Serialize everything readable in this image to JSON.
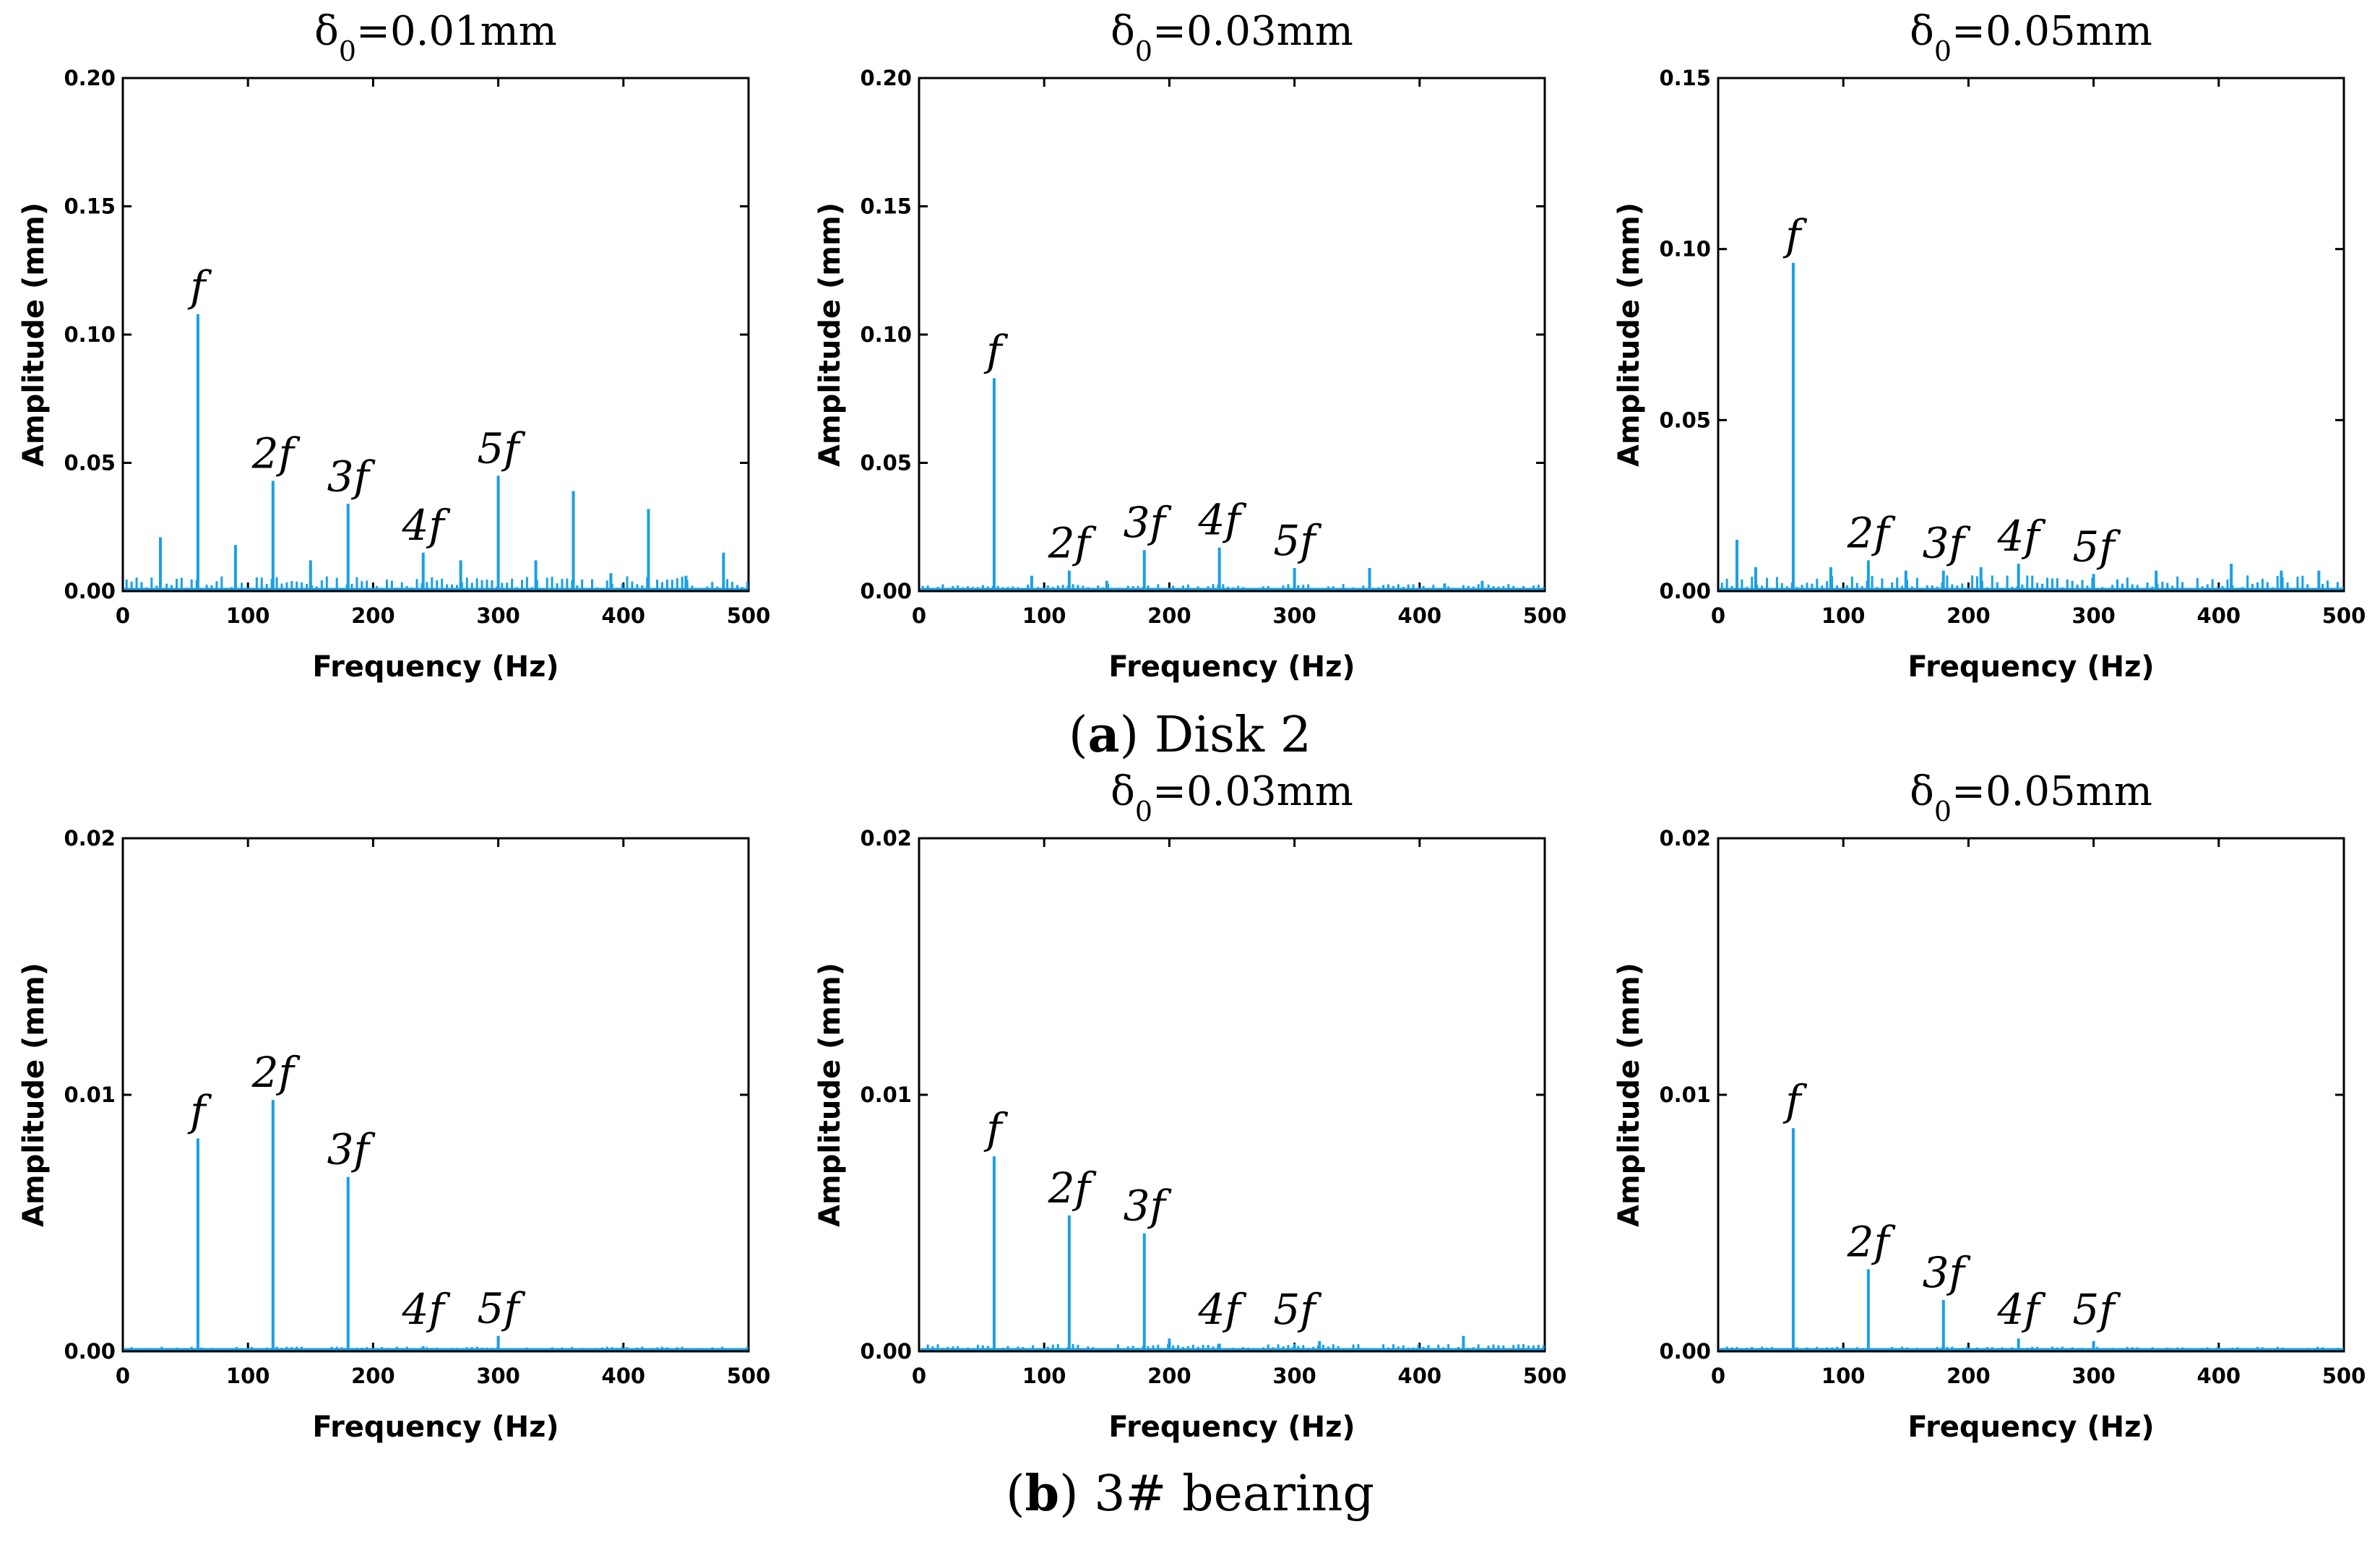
{
  "figure": {
    "captions": [
      {
        "letter": "a",
        "text": "Disk 2"
      },
      {
        "letter": "b",
        "text": "3# bearing"
      }
    ]
  },
  "chart_data": [
    {
      "type": "line",
      "row": 0,
      "col": 0,
      "title": "δ0=0.01mm",
      "title_base": "δ",
      "title_sub": "0",
      "title_rest": "=0.01mm",
      "xlabel": "Frequency (Hz)",
      "ylabel": "Amplitude (mm)",
      "xlim": [
        0,
        500
      ],
      "ylim": [
        0,
        0.2
      ],
      "xticks": [
        0,
        100,
        200,
        300,
        400,
        500
      ],
      "yticks": [
        0,
        0.05,
        0.1,
        0.15,
        0.2
      ],
      "ytick_labels": [
        "0.00",
        "0.05",
        "0.10",
        "0.15",
        "0.20"
      ],
      "series_color": "#1a9fe8",
      "peaks": [
        {
          "x": 60,
          "y": 0.108,
          "label": "f"
        },
        {
          "x": 120,
          "y": 0.043,
          "label": "2f"
        },
        {
          "x": 180,
          "y": 0.034,
          "label": "3f"
        },
        {
          "x": 240,
          "y": 0.015,
          "label": "4f"
        },
        {
          "x": 300,
          "y": 0.045,
          "label": "5f"
        }
      ],
      "minor_peaks": [
        {
          "x": 30,
          "y": 0.021
        },
        {
          "x": 90,
          "y": 0.018
        },
        {
          "x": 150,
          "y": 0.012
        },
        {
          "x": 270,
          "y": 0.012
        },
        {
          "x": 330,
          "y": 0.012
        },
        {
          "x": 360,
          "y": 0.039
        },
        {
          "x": 390,
          "y": 0.007
        },
        {
          "x": 420,
          "y": 0.032
        },
        {
          "x": 450,
          "y": 0.006
        },
        {
          "x": 480,
          "y": 0.015
        }
      ],
      "noise_level": 0.005
    },
    {
      "type": "line",
      "row": 0,
      "col": 1,
      "title": "δ0=0.03mm",
      "title_base": "δ",
      "title_sub": "0",
      "title_rest": "=0.03mm",
      "xlabel": "Frequency (Hz)",
      "ylabel": "Amplitude (mm)",
      "xlim": [
        0,
        500
      ],
      "ylim": [
        0,
        0.2
      ],
      "xticks": [
        0,
        100,
        200,
        300,
        400,
        500
      ],
      "yticks": [
        0,
        0.05,
        0.1,
        0.15,
        0.2
      ],
      "ytick_labels": [
        "0.00",
        "0.05",
        "0.10",
        "0.15",
        "0.20"
      ],
      "series_color": "#1a9fe8",
      "peaks": [
        {
          "x": 60,
          "y": 0.083,
          "label": "f"
        },
        {
          "x": 120,
          "y": 0.008,
          "label": "2f"
        },
        {
          "x": 180,
          "y": 0.016,
          "label": "3f"
        },
        {
          "x": 240,
          "y": 0.017,
          "label": "4f"
        },
        {
          "x": 300,
          "y": 0.009,
          "label": "5f"
        }
      ],
      "minor_peaks": [
        {
          "x": 90,
          "y": 0.006
        },
        {
          "x": 150,
          "y": 0.004
        },
        {
          "x": 360,
          "y": 0.009
        },
        {
          "x": 420,
          "y": 0.003
        },
        {
          "x": 450,
          "y": 0.004
        }
      ],
      "noise_level": 0.002
    },
    {
      "type": "line",
      "row": 0,
      "col": 2,
      "title": "δ0=0.05mm",
      "title_base": "δ",
      "title_sub": "0",
      "title_rest": "=0.05mm",
      "xlabel": "Frequency (Hz)",
      "ylabel": "Amplitude (mm)",
      "xlim": [
        0,
        500
      ],
      "ylim": [
        0,
        0.15
      ],
      "xticks": [
        0,
        100,
        200,
        300,
        400,
        500
      ],
      "yticks": [
        0,
        0.05,
        0.1,
        0.15
      ],
      "ytick_labels": [
        "0.00",
        "0.05",
        "0.10",
        "0.15"
      ],
      "series_color": "#1a9fe8",
      "peaks": [
        {
          "x": 60,
          "y": 0.096,
          "label": "f"
        },
        {
          "x": 120,
          "y": 0.009,
          "label": "2f"
        },
        {
          "x": 180,
          "y": 0.006,
          "label": "3f"
        },
        {
          "x": 240,
          "y": 0.008,
          "label": "4f"
        },
        {
          "x": 300,
          "y": 0.005,
          "label": "5f"
        }
      ],
      "minor_peaks": [
        {
          "x": 15,
          "y": 0.015
        },
        {
          "x": 30,
          "y": 0.007
        },
        {
          "x": 90,
          "y": 0.007
        },
        {
          "x": 150,
          "y": 0.006
        },
        {
          "x": 210,
          "y": 0.007
        },
        {
          "x": 350,
          "y": 0.006
        },
        {
          "x": 410,
          "y": 0.008
        },
        {
          "x": 450,
          "y": 0.006
        },
        {
          "x": 480,
          "y": 0.006
        }
      ],
      "noise_level": 0.004
    },
    {
      "type": "line",
      "row": 1,
      "col": 0,
      "title": "",
      "xlabel": "Frequency (Hz)",
      "ylabel": "Amplitude (mm)",
      "xlim": [
        0,
        500
      ],
      "ylim": [
        0,
        0.02
      ],
      "xticks": [
        0,
        100,
        200,
        300,
        400,
        500
      ],
      "yticks": [
        0,
        0.01,
        0.02
      ],
      "ytick_labels": [
        "0.00",
        "0.01",
        "0.02"
      ],
      "series_color": "#1a9fe8",
      "peaks": [
        {
          "x": 60,
          "y": 0.0083,
          "label": "f"
        },
        {
          "x": 120,
          "y": 0.0098,
          "label": "2f"
        },
        {
          "x": 180,
          "y": 0.0068,
          "label": "3f"
        },
        {
          "x": 240,
          "y": 0.0002,
          "label": "4f"
        },
        {
          "x": 300,
          "y": 0.0006,
          "label": "5f"
        }
      ],
      "minor_peaks": [],
      "noise_level": 0.0001
    },
    {
      "type": "line",
      "row": 1,
      "col": 1,
      "title": "δ0=0.03mm",
      "title_base": "δ",
      "title_sub": "0",
      "title_rest": "=0.03mm",
      "xlabel": "Frequency (Hz)",
      "ylabel": "Amplitude (mm)",
      "xlim": [
        0,
        500
      ],
      "ylim": [
        0,
        0.02
      ],
      "xticks": [
        0,
        100,
        200,
        300,
        400,
        500
      ],
      "yticks": [
        0,
        0.01,
        0.02
      ],
      "ytick_labels": [
        "0.00",
        "0.01",
        "0.02"
      ],
      "series_color": "#1a9fe8",
      "peaks": [
        {
          "x": 60,
          "y": 0.0076,
          "label": "f"
        },
        {
          "x": 120,
          "y": 0.0053,
          "label": "2f"
        },
        {
          "x": 180,
          "y": 0.0046,
          "label": "3f"
        },
        {
          "x": 240,
          "y": 0.0003,
          "label": "4f"
        },
        {
          "x": 300,
          "y": 0.0003,
          "label": "5f"
        }
      ],
      "minor_peaks": [
        {
          "x": 200,
          "y": 0.0005
        },
        {
          "x": 320,
          "y": 0.0004
        },
        {
          "x": 435,
          "y": 0.0006
        }
      ],
      "noise_level": 0.0002
    },
    {
      "type": "line",
      "row": 1,
      "col": 2,
      "title": "δ0=0.05mm",
      "title_base": "δ",
      "title_sub": "0",
      "title_rest": "=0.05mm",
      "xlabel": "Frequency (Hz)",
      "ylabel": "Amplitude (mm)",
      "xlim": [
        0,
        500
      ],
      "ylim": [
        0,
        0.02
      ],
      "xticks": [
        0,
        100,
        200,
        300,
        400,
        500
      ],
      "yticks": [
        0,
        0.01,
        0.02
      ],
      "ytick_labels": [
        "0.00",
        "0.01",
        "0.02"
      ],
      "series_color": "#1a9fe8",
      "peaks": [
        {
          "x": 60,
          "y": 0.0087,
          "label": "f"
        },
        {
          "x": 120,
          "y": 0.0032,
          "label": "2f"
        },
        {
          "x": 180,
          "y": 0.002,
          "label": "3f"
        },
        {
          "x": 240,
          "y": 0.0005,
          "label": "4f"
        },
        {
          "x": 300,
          "y": 0.0004,
          "label": "5f"
        }
      ],
      "minor_peaks": [],
      "noise_level": 0.0001
    }
  ]
}
